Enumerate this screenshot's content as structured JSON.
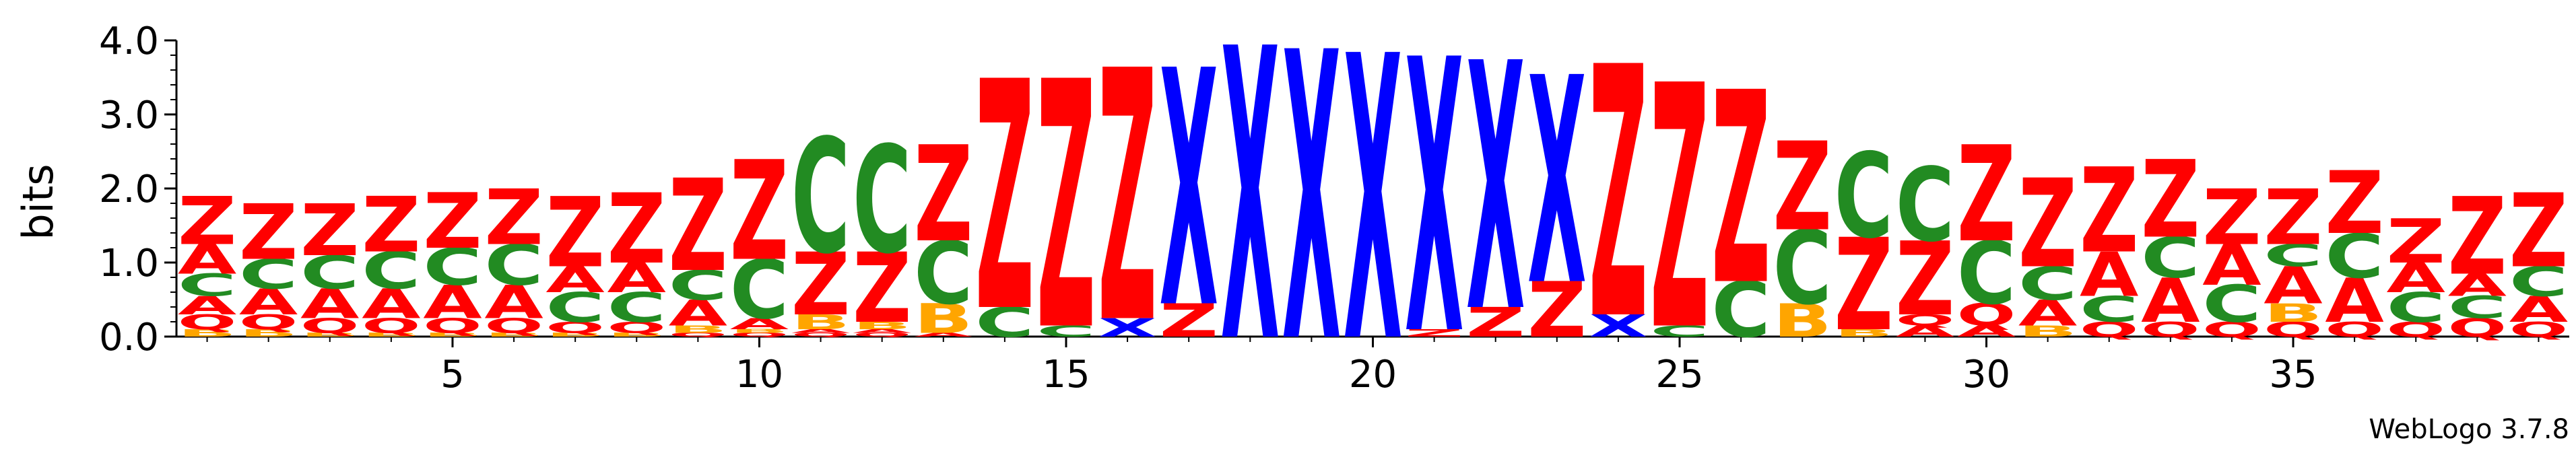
{
  "chart_data": {
    "type": "sequence-logo",
    "ylabel": "bits",
    "ylim": [
      0,
      4.0
    ],
    "yticks": [
      "0.0",
      "1.0",
      "2.0",
      "3.0",
      "4.0"
    ],
    "xticks": [
      {
        "position": 5,
        "label": "5"
      },
      {
        "position": 10,
        "label": "10"
      },
      {
        "position": 15,
        "label": "15"
      },
      {
        "position": 20,
        "label": "20"
      },
      {
        "position": 25,
        "label": "25"
      },
      {
        "position": 30,
        "label": "30"
      },
      {
        "position": 35,
        "label": "35"
      }
    ],
    "colors": {
      "Z": "#ff0000",
      "C": "#228b22",
      "A": "#ff0000",
      "Q": "#ff0000",
      "B": "#ffa500",
      "X": "#0000ff"
    },
    "columns": [
      [
        [
          "B",
          0.1
        ],
        [
          "Q",
          0.2
        ],
        [
          "A",
          0.25
        ],
        [
          "C",
          0.3
        ],
        [
          "A",
          0.4
        ],
        [
          "Z",
          0.65
        ]
      ],
      [
        [
          "B",
          0.1
        ],
        [
          "Q",
          0.2
        ],
        [
          "A",
          0.35
        ],
        [
          "C",
          0.4
        ],
        [
          "Z",
          0.75
        ]
      ],
      [
        [
          "B",
          0.05
        ],
        [
          "Q",
          0.2
        ],
        [
          "A",
          0.4
        ],
        [
          "C",
          0.45
        ],
        [
          "Z",
          0.7
        ]
      ],
      [
        [
          "B",
          0.05
        ],
        [
          "Q",
          0.2
        ],
        [
          "A",
          0.4
        ],
        [
          "C",
          0.5
        ],
        [
          "Z",
          0.75
        ]
      ],
      [
        [
          "B",
          0.05
        ],
        [
          "Q",
          0.2
        ],
        [
          "A",
          0.45
        ],
        [
          "C",
          0.5
        ],
        [
          "Z",
          0.75
        ]
      ],
      [
        [
          "B",
          0.05
        ],
        [
          "Q",
          0.2
        ],
        [
          "A",
          0.45
        ],
        [
          "C",
          0.55
        ],
        [
          "Z",
          0.75
        ]
      ],
      [
        [
          "B",
          0.05
        ],
        [
          "Q",
          0.15
        ],
        [
          "C",
          0.4
        ],
        [
          "A",
          0.35
        ],
        [
          "Z",
          0.95
        ]
      ],
      [
        [
          "B",
          0.05
        ],
        [
          "Q",
          0.15
        ],
        [
          "C",
          0.4
        ],
        [
          "A",
          0.4
        ],
        [
          "Z",
          0.95
        ]
      ],
      [
        [
          "Q",
          0.05
        ],
        [
          "B",
          0.1
        ],
        [
          "A",
          0.35
        ],
        [
          "C",
          0.4
        ],
        [
          "Z",
          1.25
        ]
      ],
      [
        [
          "Q",
          0.05
        ],
        [
          "B",
          0.05
        ],
        [
          "A",
          0.15
        ],
        [
          "C",
          0.8
        ],
        [
          "Z",
          1.35
        ]
      ],
      [
        [
          "Q",
          0.05
        ],
        [
          "A",
          0.05
        ],
        [
          "B",
          0.2
        ],
        [
          "Z",
          0.85
        ],
        [
          "C",
          1.55
        ]
      ],
      [
        [
          "Q",
          0.05
        ],
        [
          "A",
          0.05
        ],
        [
          "B",
          0.1
        ],
        [
          "Z",
          0.95
        ],
        [
          "C",
          1.45
        ]
      ],
      [
        [
          "A",
          0.05
        ],
        [
          "B",
          0.4
        ],
        [
          "C",
          0.85
        ],
        [
          "Z",
          1.3
        ]
      ],
      [
        [
          "C",
          0.4
        ],
        [
          "Z",
          3.1
        ]
      ],
      [
        [
          "C",
          0.15
        ],
        [
          "Z",
          3.35
        ]
      ],
      [
        [
          "X",
          0.25
        ],
        [
          "Z",
          3.4
        ]
      ],
      [
        [
          "Z",
          0.45
        ],
        [
          "X",
          3.2
        ]
      ],
      [
        [
          "X",
          3.95
        ]
      ],
      [
        [
          "X",
          3.9
        ]
      ],
      [
        [
          "X",
          3.85
        ]
      ],
      [
        [
          "Z",
          0.1
        ],
        [
          "X",
          3.7
        ]
      ],
      [
        [
          "Z",
          0.4
        ],
        [
          "X",
          3.35
        ]
      ],
      [
        [
          "Z",
          0.75
        ],
        [
          "X",
          2.8
        ]
      ],
      [
        [
          "X",
          0.3
        ],
        [
          "Z",
          3.4
        ]
      ],
      [
        [
          "C",
          0.15
        ],
        [
          "Z",
          3.3
        ]
      ],
      [
        [
          "C",
          0.75
        ],
        [
          "Z",
          2.6
        ]
      ],
      [
        [
          "B",
          0.45
        ],
        [
          "C",
          1.0
        ],
        [
          "Z",
          1.2
        ]
      ],
      [
        [
          "B",
          0.1
        ],
        [
          "Z",
          1.25
        ],
        [
          "C",
          1.15
        ]
      ],
      [
        [
          "A",
          0.15
        ],
        [
          "Q",
          0.15
        ],
        [
          "Z",
          1.0
        ],
        [
          "C",
          1.0
        ]
      ],
      [
        [
          "A",
          0.15
        ],
        [
          "Q",
          0.3
        ],
        [
          "C",
          0.85
        ],
        [
          "Z",
          1.3
        ]
      ],
      [
        [
          "B",
          0.15
        ],
        [
          "A",
          0.35
        ],
        [
          "C",
          0.45
        ],
        [
          "Z",
          1.2
        ]
      ],
      [
        [
          "Q",
          0.2
        ],
        [
          "C",
          0.35
        ],
        [
          "A",
          0.6
        ],
        [
          "Z",
          1.15
        ]
      ],
      [
        [
          "Q",
          0.2
        ],
        [
          "A",
          0.6
        ],
        [
          "C",
          0.55
        ],
        [
          "Z",
          1.05
        ]
      ],
      [
        [
          "Q",
          0.2
        ],
        [
          "C",
          0.5
        ],
        [
          "A",
          0.55
        ],
        [
          "Z",
          0.75
        ]
      ],
      [
        [
          "Q",
          0.2
        ],
        [
          "B",
          0.25
        ],
        [
          "A",
          0.5
        ],
        [
          "C",
          0.3
        ],
        [
          "Z",
          0.75
        ]
      ],
      [
        [
          "Q",
          0.2
        ],
        [
          "A",
          0.6
        ],
        [
          "C",
          0.6
        ],
        [
          "Z",
          0.85
        ]
      ],
      [
        [
          "Q",
          0.2
        ],
        [
          "C",
          0.4
        ],
        [
          "A",
          0.4
        ],
        [
          "Z",
          0.6
        ]
      ],
      [
        [
          "Q",
          0.25
        ],
        [
          "C",
          0.3
        ],
        [
          "A",
          0.3
        ],
        [
          "Z",
          1.05
        ]
      ],
      [
        [
          "Q",
          0.2
        ],
        [
          "A",
          0.35
        ],
        [
          "C",
          0.4
        ],
        [
          "Z",
          1.0
        ]
      ]
    ]
  },
  "credit": "WebLogo 3.7.8"
}
